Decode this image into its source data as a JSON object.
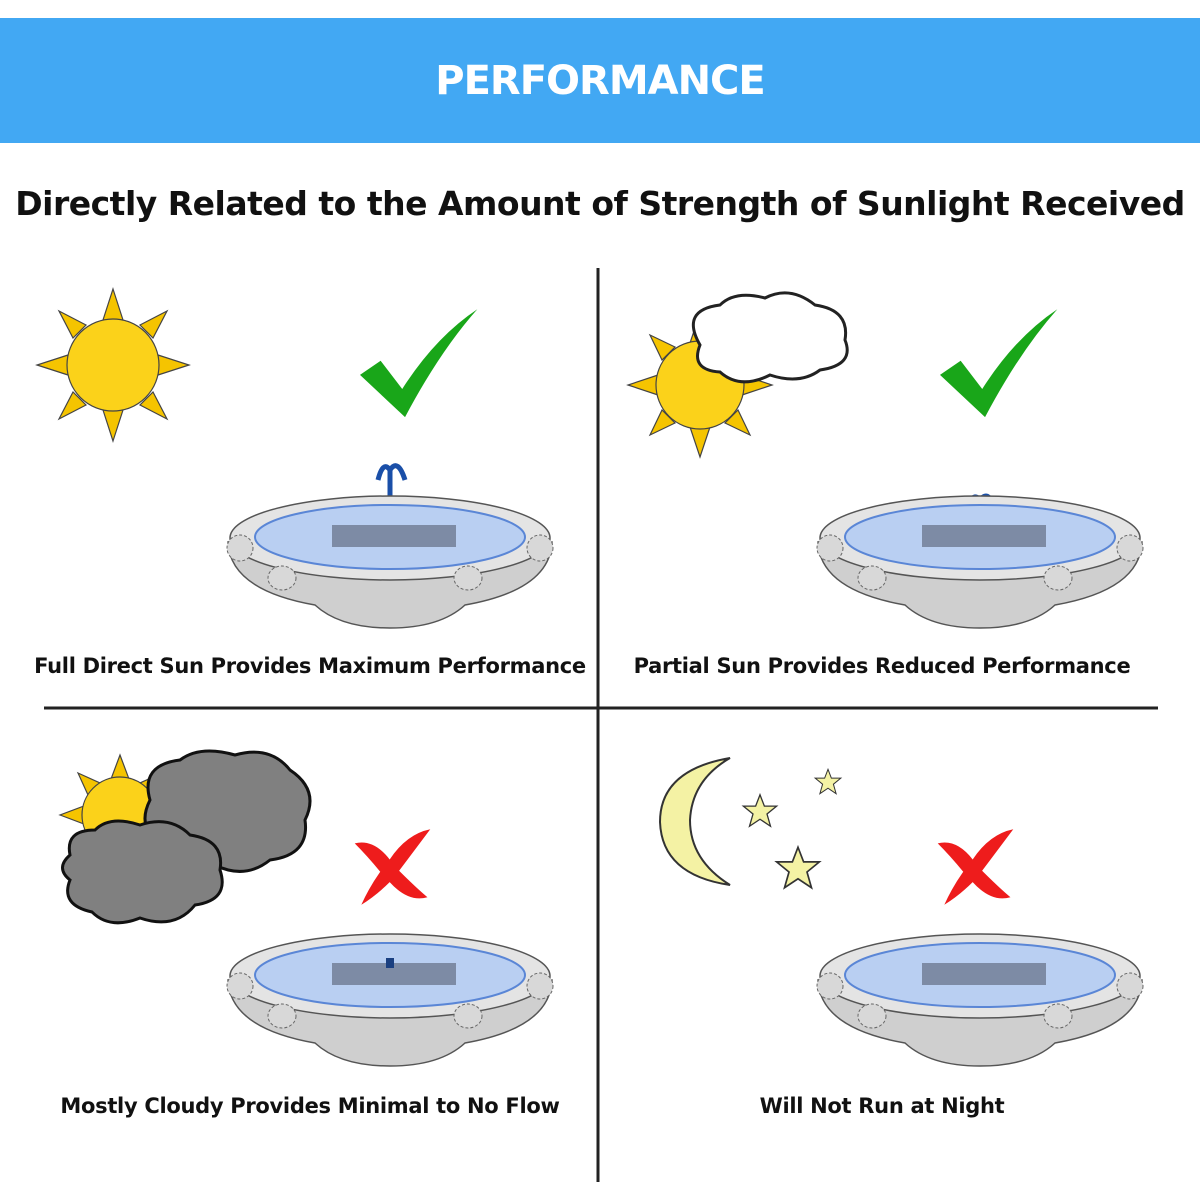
{
  "header": {
    "title": "PERFORMANCE",
    "background_color": "#42a8f3"
  },
  "subtitle": "Directly Related to the Amount of Strength of Sunlight Received",
  "panels": [
    {
      "caption": "Full Direct Sun Provides Maximum Performance",
      "weather_icon": "sun-icon",
      "status_icon": "checkmark-icon",
      "status_color": "#19a619",
      "fountain_flow": "maximum"
    },
    {
      "caption": "Partial Sun Provides Reduced Performance",
      "weather_icon": "sun-behind-cloud-icon",
      "status_icon": "checkmark-icon",
      "status_color": "#19a619",
      "fountain_flow": "reduced"
    },
    {
      "caption": "Mostly Cloudy Provides Minimal to No Flow",
      "weather_icon": "dark-clouds-icon",
      "status_icon": "x-mark-icon",
      "status_color": "#ee1c1c",
      "fountain_flow": "none"
    },
    {
      "caption": "Will Not Run at Night",
      "weather_icon": "moon-and-stars-icon",
      "status_icon": "x-mark-icon",
      "status_color": "#ee1c1c",
      "fountain_flow": "none"
    }
  ]
}
